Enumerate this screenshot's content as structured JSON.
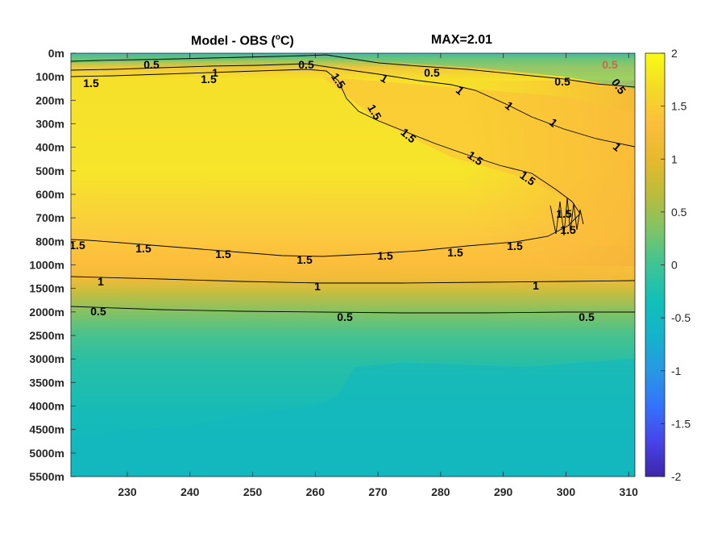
{
  "chart_data": {
    "type": "heatmap",
    "title": {
      "main": "Model - OBS (",
      "unit_sup": "o",
      "unit_tail": "C)",
      "max_label": "MAX=2.01"
    },
    "xlabel": "",
    "ylabel": "",
    "x_ticks": [
      230,
      240,
      250,
      260,
      270,
      280,
      290,
      300,
      310
    ],
    "xlim": [
      221,
      311
    ],
    "y_ticks": [
      "0m",
      "100m",
      "200m",
      "300m",
      "400m",
      "500m",
      "600m",
      "700m",
      "800m",
      "1000m",
      "1500m",
      "2000m",
      "2500m",
      "3000m",
      "3500m",
      "4000m",
      "4500m",
      "5000m",
      "5500m"
    ],
    "colorbar": {
      "ticks": [
        2,
        1.5,
        1,
        0.5,
        0,
        -0.5,
        -1,
        -1.5,
        -2
      ],
      "tick_labels": [
        "2",
        "1.5",
        "1",
        "0.5",
        "0",
        "-0.5",
        "-1",
        "-1.5",
        "-2"
      ],
      "range": [
        -2,
        2
      ],
      "colormap": "parula",
      "colors": [
        "#3e26a8",
        "#4744ea",
        "#3473fd",
        "#2898e3",
        "#14b3cb",
        "#11c0b7",
        "#3ec495",
        "#7fc466",
        "#bbbc3a",
        "#e7b92d",
        "#fdbe3c",
        "#f4db26",
        "#f9fb14"
      ]
    },
    "contour_levels": [
      0.5,
      1,
      1.5
    ],
    "contour_label_texts": [
      "0.5",
      "0.5",
      "0.5",
      "0.5",
      "0.5",
      "0.5",
      "0.5",
      "0.5",
      "0.5",
      "1",
      "1",
      "1",
      "1",
      "1",
      "1",
      "1",
      "1",
      "1",
      "1.5",
      "1.5",
      "1.5",
      "1.5",
      "1.5",
      "1.5",
      "1.5",
      "1.5",
      "1.5",
      "1.5",
      "1.5",
      "1.5",
      "1.5",
      "1.5",
      "1.5",
      "1.5"
    ],
    "depth_profile": [
      {
        "depth": "0m",
        "value": 0.3
      },
      {
        "depth": "100m",
        "value": 1.4
      },
      {
        "depth": "200m",
        "value": 1.9
      },
      {
        "depth": "300m",
        "value": 1.95
      },
      {
        "depth": "400m",
        "value": 1.95
      },
      {
        "depth": "500m",
        "value": 1.9
      },
      {
        "depth": "600m",
        "value": 1.85
      },
      {
        "depth": "700m",
        "value": 1.75
      },
      {
        "depth": "800m",
        "value": 1.5
      },
      {
        "depth": "1000m",
        "value": 1.3
      },
      {
        "depth": "1500m",
        "value": 1.0
      },
      {
        "depth": "2000m",
        "value": 0.5
      },
      {
        "depth": "2500m",
        "value": 0.3
      },
      {
        "depth": "3000m",
        "value": 0.15
      },
      {
        "depth": "3500m",
        "value": 0.1
      },
      {
        "depth": "4000m",
        "value": 0.05
      },
      {
        "depth": "5500m",
        "value": 0.0
      }
    ]
  }
}
